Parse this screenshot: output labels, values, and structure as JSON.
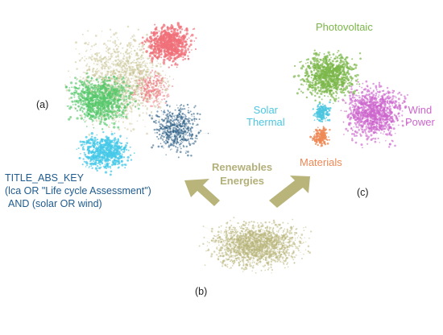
{
  "panels": {
    "a": "(a)",
    "b": "(b)",
    "c": "(c)"
  },
  "query": {
    "line1": "TITLE_ABS_KEY",
    "line2": "(lca OR \"Life cycle Assessment\")",
    "line3": "AND (solar OR wind)"
  },
  "center_label": {
    "line1": "Renewables",
    "line2": "Energies"
  },
  "clusters": {
    "photovoltaic": "Photovoltaic",
    "solar_line1": "Solar",
    "solar_line2": "Thermal",
    "wind_line1": "Wind",
    "wind_line2": "Power",
    "materials": "Materials"
  },
  "colors": {
    "photovoltaic": "#7ab648",
    "solar_thermal": "#4cc6e0",
    "wind_power": "#cc66cc",
    "materials": "#ee8855",
    "renewables": "#b8b47a",
    "net_red": "#f0707a",
    "net_green": "#55c76a",
    "net_cyan": "#45c8e8",
    "net_navy": "#2d5f86",
    "net_khaki": "#c8c496",
    "arrow": "#b8b47a",
    "query_text": "#1f5b8e"
  }
}
